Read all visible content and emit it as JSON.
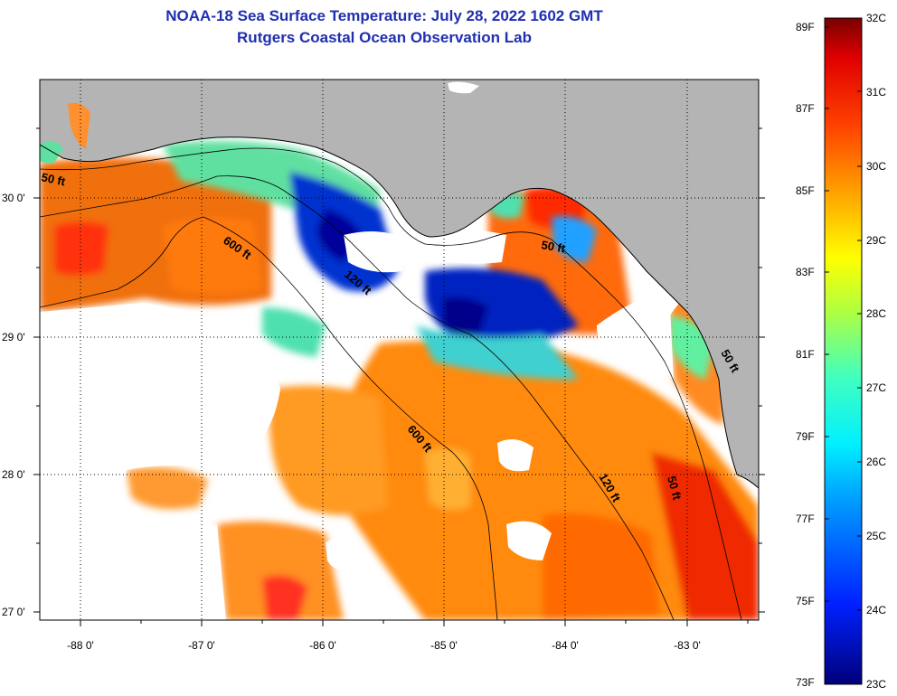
{
  "header": {
    "title": "NOAA-18 Sea Surface Temperature:  July 28, 2022 1602 GMT",
    "subtitle": "Rutgers Coastal Ocean Observation Lab"
  },
  "map": {
    "lat_labels": [
      "30 0'",
      "29 0'",
      "28 0'",
      "27 0'"
    ],
    "lon_labels": [
      "-88 0'",
      "-87 0'",
      "-86 0'",
      "-85 0'",
      "-84 0'",
      "-83 0'"
    ],
    "contour_labels": [
      "50 ft",
      "600 ft",
      "120 ft",
      "50 ft",
      "600 ft",
      "120 ft",
      "50 ft",
      "50 ft"
    ]
  },
  "colorbar": {
    "fahrenheit": [
      "89F",
      "87F",
      "85F",
      "83F",
      "81F",
      "79F",
      "77F",
      "75F",
      "73F"
    ],
    "celsius": [
      "32C",
      "31C",
      "30C",
      "29C",
      "28C",
      "27C",
      "26C",
      "25C",
      "24C",
      "23C"
    ]
  },
  "colors": {
    "land": "#b4b4b4",
    "cloud": "#ffffff",
    "title": "#1f2fb0"
  }
}
